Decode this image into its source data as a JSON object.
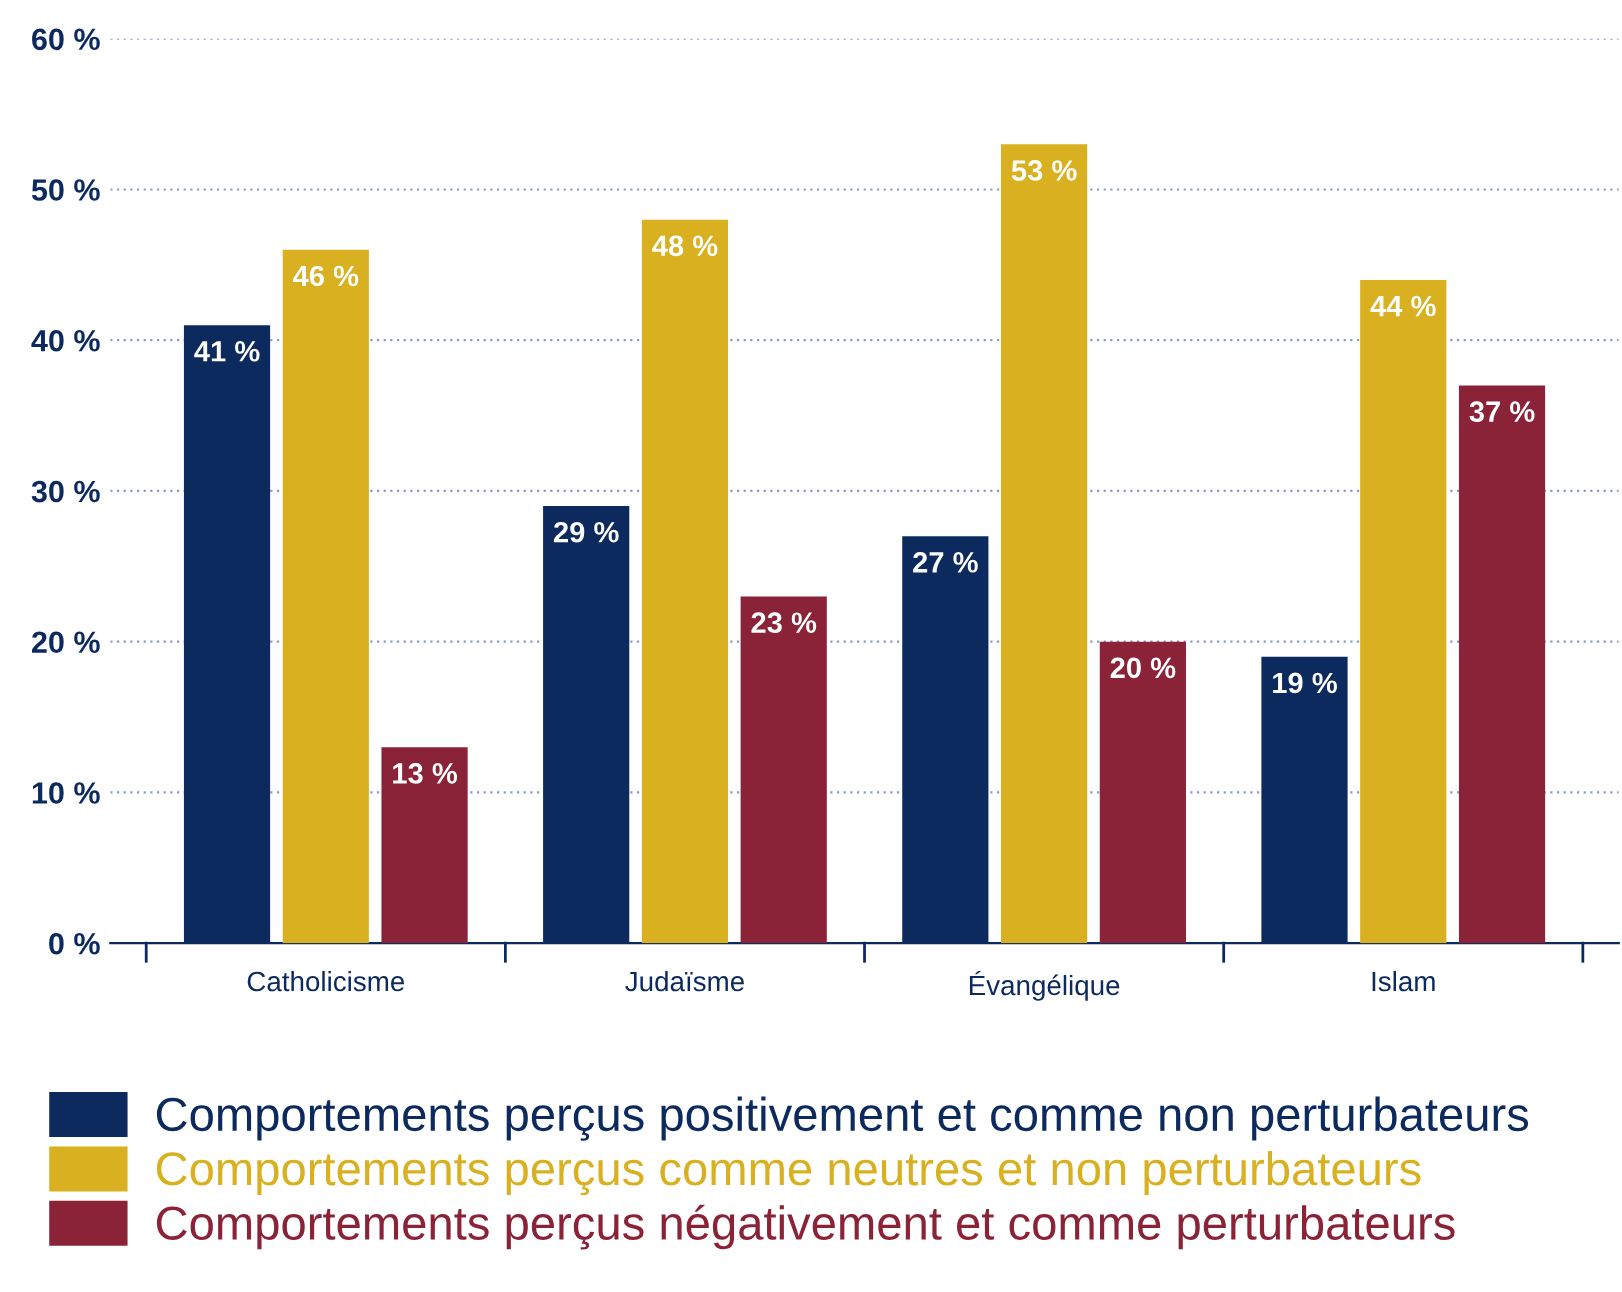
{
  "chart_data": {
    "type": "bar",
    "categories": [
      "Catholicisme",
      "Judaïsme",
      "Évangélique",
      "Islam"
    ],
    "series": [
      {
        "name": "Comportements perçus positivement et comme non perturbateurs",
        "color": "#0d2a5e",
        "values": [
          41,
          29,
          27,
          19
        ],
        "value_labels": [
          "41 %",
          "29 %",
          "27 %",
          "19 %"
        ]
      },
      {
        "name": "Comportements perçus comme neutres et non perturbateurs",
        "color": "#d9b020",
        "values": [
          46,
          48,
          53,
          44
        ],
        "value_labels": [
          "46 %",
          "48 %",
          "53 %",
          "44 %"
        ]
      },
      {
        "name": "Comportements perçus négativement et comme perturbateurs",
        "color": "#8a2338",
        "values": [
          13,
          23,
          20,
          37
        ],
        "value_labels": [
          "13 %",
          "23 %",
          "20 %",
          "37 %"
        ]
      }
    ],
    "ylim": [
      0,
      60
    ],
    "yticks": [
      {
        "value": 0,
        "label": "0 %"
      },
      {
        "value": 10,
        "label": "10 %"
      },
      {
        "value": 20,
        "label": "20 %"
      },
      {
        "value": 30,
        "label": "30 %"
      },
      {
        "value": 40,
        "label": "40 %"
      },
      {
        "value": 50,
        "label": "50 %"
      },
      {
        "value": 60,
        "label": "60 %"
      }
    ],
    "grid": "y",
    "legend": "bottom"
  }
}
